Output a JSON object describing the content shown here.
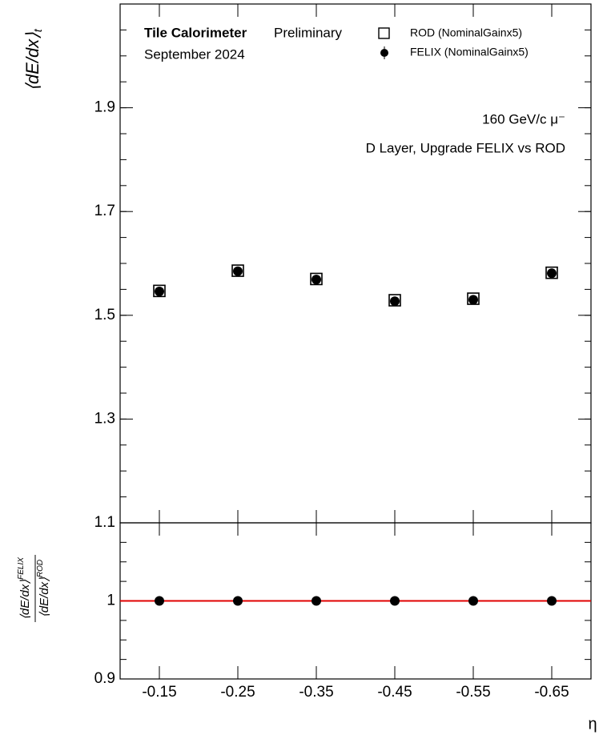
{
  "chart_data": [
    {
      "type": "scatter",
      "ylabel": "⟨dE/dx⟩",
      "ylabel_sub": "t",
      "annotations": [
        "Tile Calorimeter",
        "Preliminary",
        "September 2024",
        "160 GeV/c μ⁻",
        "D Layer, Upgrade FELIX vs ROD"
      ],
      "categories": [
        "-0.15",
        "-0.25",
        "-0.35",
        "-0.45",
        "-0.55",
        "-0.65"
      ],
      "series": [
        {
          "name": "ROD (NominalGainx5)",
          "color": "#000000",
          "marker": "open-square",
          "values": [
            1.547,
            1.586,
            1.57,
            1.529,
            1.532,
            1.582
          ]
        },
        {
          "name": "FELIX (NominalGainx5)",
          "color": "#000000",
          "marker": "circle",
          "values": [
            1.546,
            1.585,
            1.569,
            1.527,
            1.53,
            1.581
          ]
        }
      ],
      "ylim": [
        1.1,
        2.1
      ],
      "yticks": [
        1.1,
        1.3,
        1.5,
        1.7,
        1.9
      ]
    },
    {
      "type": "scatter",
      "ylabel_num": "⟨dE/dx⟩",
      "ylabel_num_sub": "t",
      "ylabel_num_sup": "FELIX",
      "ylabel_den": "⟨dE/dx⟩",
      "ylabel_den_sub": "t",
      "ylabel_den_sup": "ROD",
      "xlabel": "η",
      "categories": [
        "-0.15",
        "-0.25",
        "-0.35",
        "-0.45",
        "-0.55",
        "-0.65"
      ],
      "series": [
        {
          "color": "#000000",
          "marker": "circle",
          "values": [
            1.0,
            1.0,
            1.0,
            1.0,
            1.0,
            1.0
          ]
        }
      ],
      "reference_line": 1.0,
      "reference_color": "#e00000",
      "ylim": [
        0.9,
        1.1
      ],
      "yticks": [
        0.9,
        1.0
      ]
    }
  ]
}
